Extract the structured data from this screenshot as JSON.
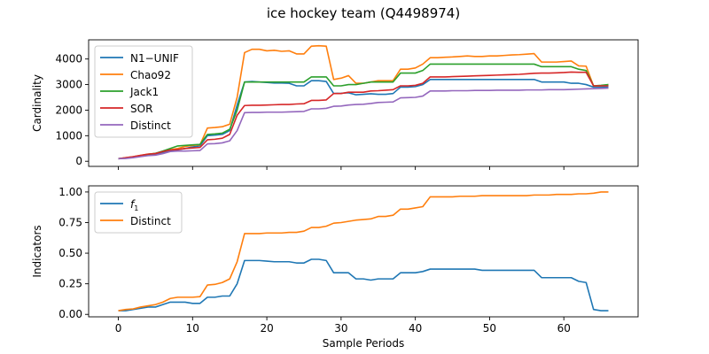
{
  "figure": {
    "title": "ice hockey team (Q4498974)"
  },
  "chart_data": [
    {
      "type": "line",
      "ylabel": "Cardinality",
      "xlabel": "",
      "xlim": [
        -4,
        70
      ],
      "ylim": [
        -200,
        4750
      ],
      "xticks": [
        0,
        10,
        20,
        30,
        40,
        50,
        60
      ],
      "yticks": [
        0,
        1000,
        2000,
        3000,
        4000
      ],
      "grid": false,
      "legend_position": "upper-left",
      "x": [
        0,
        1,
        2,
        3,
        4,
        5,
        6,
        7,
        8,
        9,
        10,
        11,
        12,
        13,
        14,
        15,
        16,
        17,
        18,
        19,
        20,
        21,
        22,
        23,
        24,
        25,
        26,
        27,
        28,
        29,
        30,
        31,
        32,
        33,
        34,
        35,
        36,
        37,
        38,
        39,
        40,
        41,
        42,
        43,
        44,
        45,
        46,
        47,
        48,
        49,
        50,
        51,
        52,
        53,
        54,
        55,
        56,
        57,
        58,
        59,
        60,
        61,
        62,
        63,
        64,
        65,
        66
      ],
      "series": [
        {
          "name": "N1−UNIF",
          "color": "#1f77b4",
          "values": [
            100,
            120,
            150,
            200,
            250,
            260,
            340,
            420,
            450,
            500,
            560,
            600,
            1000,
            1020,
            1050,
            1200,
            2200,
            3100,
            3120,
            3100,
            3080,
            3060,
            3060,
            3050,
            2950,
            2950,
            3150,
            3150,
            3120,
            2650,
            2660,
            2680,
            2600,
            2620,
            2640,
            2620,
            2620,
            2650,
            2900,
            2900,
            2920,
            3000,
            3200,
            3200,
            3200,
            3200,
            3200,
            3200,
            3200,
            3200,
            3200,
            3200,
            3200,
            3200,
            3200,
            3200,
            3200,
            3100,
            3100,
            3100,
            3100,
            3050,
            3050,
            3000,
            2900,
            2900,
            2900
          ]
        },
        {
          "name": "Chao92",
          "color": "#ff7f0e",
          "values": [
            100,
            140,
            180,
            230,
            280,
            310,
            380,
            450,
            500,
            580,
            620,
            640,
            1300,
            1320,
            1350,
            1450,
            2500,
            4250,
            4380,
            4380,
            4320,
            4340,
            4300,
            4320,
            4200,
            4200,
            4500,
            4520,
            4500,
            3200,
            3250,
            3350,
            3050,
            3050,
            3100,
            3150,
            3150,
            3150,
            3600,
            3600,
            3650,
            3800,
            4050,
            4050,
            4070,
            4080,
            4100,
            4120,
            4100,
            4100,
            4120,
            4120,
            4140,
            4160,
            4170,
            4190,
            4210,
            3880,
            3880,
            3880,
            3900,
            3920,
            3730,
            3720,
            2950,
            2950,
            3000
          ]
        },
        {
          "name": "Jack1",
          "color": "#2ca02c",
          "values": [
            100,
            130,
            170,
            220,
            270,
            310,
            400,
            500,
            600,
            620,
            640,
            660,
            1050,
            1070,
            1100,
            1250,
            2000,
            3100,
            3100,
            3100,
            3100,
            3100,
            3100,
            3100,
            3100,
            3100,
            3300,
            3300,
            3300,
            2950,
            2950,
            3000,
            3000,
            3050,
            3100,
            3100,
            3100,
            3100,
            3450,
            3450,
            3450,
            3550,
            3800,
            3800,
            3800,
            3800,
            3800,
            3800,
            3800,
            3800,
            3800,
            3800,
            3800,
            3800,
            3800,
            3800,
            3800,
            3700,
            3700,
            3700,
            3700,
            3700,
            3600,
            3550,
            2950,
            2970,
            3000
          ]
        },
        {
          "name": "SOR",
          "color": "#d62728",
          "values": [
            100,
            140,
            180,
            230,
            280,
            300,
            380,
            440,
            460,
            500,
            520,
            540,
            840,
            860,
            900,
            1050,
            1800,
            2180,
            2190,
            2190,
            2200,
            2210,
            2220,
            2220,
            2240,
            2250,
            2380,
            2380,
            2400,
            2650,
            2650,
            2700,
            2700,
            2700,
            2750,
            2760,
            2780,
            2800,
            2950,
            2950,
            2970,
            3050,
            3300,
            3300,
            3300,
            3310,
            3320,
            3330,
            3340,
            3350,
            3360,
            3370,
            3380,
            3390,
            3400,
            3420,
            3440,
            3450,
            3450,
            3460,
            3470,
            3490,
            3480,
            3480,
            2950,
            2950,
            2950
          ]
        },
        {
          "name": "Distinct",
          "color": "#9467bd",
          "values": [
            100,
            110,
            140,
            180,
            220,
            240,
            300,
            380,
            400,
            400,
            410,
            420,
            680,
            690,
            720,
            800,
            1200,
            1900,
            1910,
            1910,
            1920,
            1920,
            1920,
            1930,
            1940,
            1950,
            2050,
            2050,
            2070,
            2150,
            2160,
            2200,
            2220,
            2230,
            2260,
            2300,
            2310,
            2320,
            2480,
            2490,
            2500,
            2550,
            2750,
            2750,
            2750,
            2760,
            2760,
            2760,
            2770,
            2770,
            2770,
            2780,
            2780,
            2780,
            2780,
            2790,
            2790,
            2790,
            2800,
            2800,
            2800,
            2810,
            2820,
            2830,
            2840,
            2850,
            2860
          ]
        }
      ]
    },
    {
      "type": "line",
      "ylabel": "Indicators",
      "xlabel": "Sample Periods",
      "xlim": [
        -4,
        70
      ],
      "ylim": [
        -0.02,
        1.05
      ],
      "xticks": [
        0,
        10,
        20,
        30,
        40,
        50,
        60
      ],
      "yticks": [
        0.0,
        0.25,
        0.5,
        0.75,
        1.0
      ],
      "ytick_labels": [
        "0.00",
        "0.25",
        "0.50",
        "0.75",
        "1.00"
      ],
      "grid": false,
      "legend_position": "upper-left",
      "x": [
        0,
        1,
        2,
        3,
        4,
        5,
        6,
        7,
        8,
        9,
        10,
        11,
        12,
        13,
        14,
        15,
        16,
        17,
        18,
        19,
        20,
        21,
        22,
        23,
        24,
        25,
        26,
        27,
        28,
        29,
        30,
        31,
        32,
        33,
        34,
        35,
        36,
        37,
        38,
        39,
        40,
        41,
        42,
        43,
        44,
        45,
        46,
        47,
        48,
        49,
        50,
        51,
        52,
        53,
        54,
        55,
        56,
        57,
        58,
        59,
        60,
        61,
        62,
        63,
        64,
        65,
        66
      ],
      "series": [
        {
          "name": "f1",
          "legend_label": "f",
          "legend_sub": "1",
          "color": "#1f77b4",
          "values": [
            0.03,
            0.03,
            0.04,
            0.05,
            0.06,
            0.06,
            0.08,
            0.1,
            0.1,
            0.1,
            0.09,
            0.09,
            0.14,
            0.14,
            0.15,
            0.15,
            0.25,
            0.44,
            0.44,
            0.44,
            0.435,
            0.43,
            0.43,
            0.43,
            0.42,
            0.42,
            0.45,
            0.45,
            0.44,
            0.34,
            0.34,
            0.34,
            0.29,
            0.29,
            0.28,
            0.29,
            0.29,
            0.29,
            0.34,
            0.34,
            0.34,
            0.35,
            0.37,
            0.37,
            0.37,
            0.37,
            0.37,
            0.37,
            0.37,
            0.36,
            0.36,
            0.36,
            0.36,
            0.36,
            0.36,
            0.36,
            0.36,
            0.3,
            0.3,
            0.3,
            0.3,
            0.3,
            0.27,
            0.26,
            0.04,
            0.03,
            0.03
          ]
        },
        {
          "name": "Distinct",
          "legend_label": "Distinct",
          "legend_sub": "",
          "color": "#ff7f0e",
          "values": [
            0.03,
            0.04,
            0.045,
            0.06,
            0.07,
            0.08,
            0.1,
            0.13,
            0.14,
            0.14,
            0.14,
            0.145,
            0.24,
            0.245,
            0.26,
            0.29,
            0.43,
            0.66,
            0.66,
            0.66,
            0.665,
            0.665,
            0.665,
            0.67,
            0.67,
            0.68,
            0.71,
            0.71,
            0.72,
            0.745,
            0.75,
            0.76,
            0.77,
            0.775,
            0.78,
            0.8,
            0.8,
            0.81,
            0.86,
            0.86,
            0.87,
            0.88,
            0.96,
            0.96,
            0.96,
            0.96,
            0.965,
            0.965,
            0.965,
            0.97,
            0.97,
            0.97,
            0.97,
            0.97,
            0.97,
            0.97,
            0.975,
            0.975,
            0.975,
            0.98,
            0.98,
            0.98,
            0.985,
            0.985,
            0.99,
            1.0,
            1.0
          ]
        }
      ]
    }
  ]
}
